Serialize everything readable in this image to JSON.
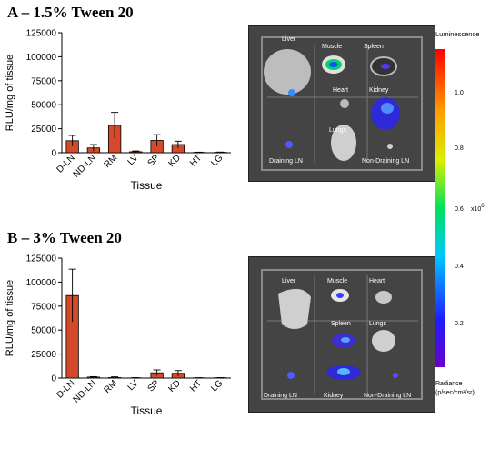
{
  "panels": {
    "a_title": "A – 1.5% Tween 20",
    "b_title": "B – 3% Tween 20"
  },
  "chart_data": [
    {
      "type": "bar",
      "categories": [
        "D-LN",
        "ND-LN",
        "RM",
        "LV",
        "SP",
        "KD",
        "HT",
        "LG"
      ],
      "values": [
        12500,
        5000,
        28500,
        1000,
        12800,
        8500,
        300,
        400
      ],
      "errors": [
        5500,
        3500,
        13500,
        800,
        6000,
        3500,
        300,
        300
      ],
      "xlabel": "Tissue",
      "ylabel": "RLU/mg of tissue",
      "ylim": [
        0,
        125000
      ],
      "yticks": [
        "0",
        "25000",
        "50000",
        "75000",
        "100000",
        "125000"
      ],
      "bar_color": "#d4492a"
    },
    {
      "type": "bar",
      "categories": [
        "D-LN",
        "ND-LN",
        "RM",
        "LV",
        "SP",
        "KD",
        "HT",
        "LG"
      ],
      "values": [
        86000,
        1000,
        500,
        200,
        5500,
        5000,
        200,
        300
      ],
      "errors": [
        27500,
        500,
        800,
        300,
        3000,
        2800,
        200,
        200
      ],
      "xlabel": "Tissue",
      "ylabel": "RLU/mg of tissue",
      "ylim": [
        0,
        125000
      ],
      "yticks": [
        "0",
        "25000",
        "50000",
        "75000",
        "100000",
        "125000"
      ],
      "bar_color": "#d4492a"
    }
  ],
  "image_a": {
    "labels": [
      "Liver",
      "Muscle",
      "Spleen",
      "Heart",
      "Kidney",
      "Lungs",
      "Draining LN",
      "Non-Draining LN"
    ]
  },
  "image_b": {
    "labels": [
      "Liver",
      "Muscle",
      "Heart",
      "Spleen",
      "Lungs",
      "Draining LN",
      "Kidney",
      "Non-Draining LN"
    ]
  },
  "colorbar": {
    "title": "Luminescence",
    "ticks": [
      "1.0",
      "0.8",
      "0.6",
      "0.4",
      "0.2"
    ],
    "multiplier": "x10",
    "multiplier_exp": "6",
    "footer_line1": "Radiance",
    "footer_line2": "(p/sec/cm²/sr)"
  }
}
